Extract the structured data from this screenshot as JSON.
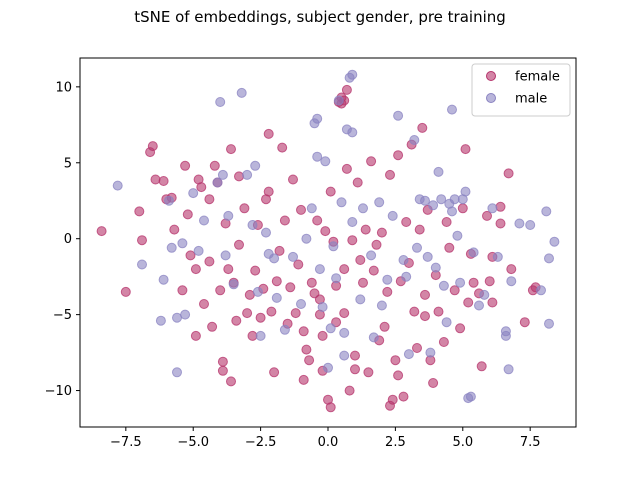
{
  "chart_data": {
    "type": "scatter",
    "title": "tSNE of embeddings, subject gender, pre training",
    "xlabel": "",
    "ylabel": "",
    "xlim": [
      -9.2,
      9.2
    ],
    "ylim": [
      -12.4,
      11.9
    ],
    "xticks": [
      -7.5,
      -5.0,
      -2.5,
      0.0,
      2.5,
      5.0,
      7.5
    ],
    "xtick_labels": [
      "−7.5",
      "−5.0",
      "−2.5",
      "0.0",
      "2.5",
      "5.0",
      "7.5"
    ],
    "yticks": [
      -10,
      -5,
      0,
      5,
      10
    ],
    "ytick_labels": [
      "−10",
      "−5",
      "0",
      "5",
      "10"
    ],
    "grid": false,
    "legend_position": "top-right",
    "series": [
      {
        "name": "female",
        "color": "#b5336b",
        "points": [
          [
            -8.4,
            0.5
          ],
          [
            -7.5,
            -3.5
          ],
          [
            -7.0,
            1.8
          ],
          [
            -6.9,
            -0.1
          ],
          [
            -6.6,
            5.7
          ],
          [
            -6.5,
            6.1
          ],
          [
            -6.4,
            3.9
          ],
          [
            -6.1,
            3.8
          ],
          [
            -6.0,
            2.6
          ],
          [
            -5.8,
            2.7
          ],
          [
            -5.7,
            0.6
          ],
          [
            -5.4,
            -3.4
          ],
          [
            -5.3,
            4.8
          ],
          [
            -5.2,
            1.6
          ],
          [
            -5.1,
            -1.1
          ],
          [
            -4.9,
            -2.0
          ],
          [
            -4.9,
            -6.4
          ],
          [
            -4.8,
            3.9
          ],
          [
            -4.7,
            3.4
          ],
          [
            -4.6,
            -4.3
          ],
          [
            -4.4,
            -1.5
          ],
          [
            -4.4,
            2.6
          ],
          [
            -4.3,
            -5.8
          ],
          [
            -4.2,
            4.8
          ],
          [
            -4.1,
            3.7
          ],
          [
            -4.0,
            -3.4
          ],
          [
            -3.9,
            -8.1
          ],
          [
            -3.9,
            -8.7
          ],
          [
            -3.8,
            1.0
          ],
          [
            -3.7,
            -2.0
          ],
          [
            -3.6,
            -9.4
          ],
          [
            -3.6,
            5.9
          ],
          [
            -3.5,
            -2.9
          ],
          [
            -3.4,
            -5.4
          ],
          [
            -3.3,
            -0.4
          ],
          [
            -3.3,
            4.1
          ],
          [
            -3.1,
            2.0
          ],
          [
            -3.0,
            -4.9
          ],
          [
            -2.9,
            -3.7
          ],
          [
            -2.8,
            -6.4
          ],
          [
            -2.7,
            -2.1
          ],
          [
            -2.6,
            0.9
          ],
          [
            -2.5,
            -5.2
          ],
          [
            -2.4,
            -3.3
          ],
          [
            -2.3,
            2.6
          ],
          [
            -2.2,
            3.1
          ],
          [
            -2.2,
            6.9
          ],
          [
            -2.1,
            -4.8
          ],
          [
            -2.0,
            -8.8
          ],
          [
            -1.9,
            -2.8
          ],
          [
            -1.8,
            -0.8
          ],
          [
            -1.7,
            6.0
          ],
          [
            -1.6,
            1.2
          ],
          [
            -1.5,
            -5.6
          ],
          [
            -1.4,
            -3.2
          ],
          [
            -1.3,
            3.9
          ],
          [
            -1.2,
            -4.9
          ],
          [
            -1.1,
            -1.7
          ],
          [
            -1.0,
            1.9
          ],
          [
            -0.9,
            -6.1
          ],
          [
            -0.9,
            -9.3
          ],
          [
            -0.8,
            -7.3
          ],
          [
            -0.7,
            -8.0
          ],
          [
            -0.6,
            -2.9
          ],
          [
            -0.5,
            -3.6
          ],
          [
            -0.4,
            1.2
          ],
          [
            -0.3,
            -5.0
          ],
          [
            -0.3,
            -4.0
          ],
          [
            -0.2,
            -6.4
          ],
          [
            -0.2,
            -8.7
          ],
          [
            -0.1,
            0.5
          ],
          [
            0.0,
            -10.6
          ],
          [
            0.1,
            -11.1
          ],
          [
            0.1,
            3.1
          ],
          [
            0.2,
            -0.2
          ],
          [
            0.3,
            -3.1
          ],
          [
            0.3,
            -5.5
          ],
          [
            0.4,
            9.0
          ],
          [
            0.5,
            8.9
          ],
          [
            0.5,
            9.3
          ],
          [
            0.6,
            9.1
          ],
          [
            0.6,
            -2.0
          ],
          [
            0.6,
            -4.9
          ],
          [
            0.7,
            9.8
          ],
          [
            0.7,
            4.6
          ],
          [
            0.8,
            -10.0
          ],
          [
            0.9,
            -0.1
          ],
          [
            1.0,
            -7.7
          ],
          [
            1.0,
            -8.6
          ],
          [
            1.1,
            3.7
          ],
          [
            1.2,
            -1.4
          ],
          [
            1.3,
            -2.9
          ],
          [
            1.4,
            0.6
          ],
          [
            1.5,
            -8.8
          ],
          [
            1.6,
            5.1
          ],
          [
            1.7,
            -2.1
          ],
          [
            1.8,
            -0.4
          ],
          [
            1.9,
            -6.7
          ],
          [
            2.0,
            0.4
          ],
          [
            2.1,
            -5.8
          ],
          [
            2.2,
            -3.5
          ],
          [
            2.3,
            4.2
          ],
          [
            2.3,
            -11.0
          ],
          [
            2.4,
            -10.6
          ],
          [
            2.5,
            -8.0
          ],
          [
            2.6,
            -9.0
          ],
          [
            2.6,
            5.5
          ],
          [
            2.7,
            -2.8
          ],
          [
            2.8,
            -10.4
          ],
          [
            2.9,
            1.1
          ],
          [
            3.0,
            -1.6
          ],
          [
            3.1,
            6.2
          ],
          [
            3.2,
            -4.8
          ],
          [
            3.3,
            -7.2
          ],
          [
            3.4,
            0.6
          ],
          [
            3.5,
            7.3
          ],
          [
            3.6,
            -3.7
          ],
          [
            3.6,
            -5.1
          ],
          [
            3.7,
            1.9
          ],
          [
            3.8,
            -8.0
          ],
          [
            3.9,
            -9.5
          ],
          [
            4.0,
            -2.4
          ],
          [
            4.1,
            -4.8
          ],
          [
            4.3,
            -6.8
          ],
          [
            4.4,
            1.1
          ],
          [
            4.5,
            -0.6
          ],
          [
            4.7,
            -3.4
          ],
          [
            4.9,
            -5.9
          ],
          [
            5.0,
            2.0
          ],
          [
            5.1,
            5.9
          ],
          [
            5.2,
            -4.2
          ],
          [
            5.3,
            -1.0
          ],
          [
            5.4,
            -2.9
          ],
          [
            5.6,
            -3.6
          ],
          [
            5.7,
            -8.4
          ],
          [
            5.9,
            1.5
          ],
          [
            6.0,
            -2.8
          ],
          [
            6.1,
            -1.2
          ],
          [
            6.1,
            -4.2
          ],
          [
            6.4,
            2.1
          ],
          [
            6.4,
            1.0
          ],
          [
            6.7,
            4.3
          ],
          [
            6.8,
            -2.0
          ],
          [
            7.3,
            -5.5
          ],
          [
            7.6,
            -3.4
          ],
          [
            7.7,
            -3.2
          ]
        ]
      },
      {
        "name": "male",
        "color": "#8a83c1",
        "points": [
          [
            -7.8,
            3.5
          ],
          [
            -6.9,
            -1.7
          ],
          [
            -6.2,
            -5.4
          ],
          [
            -6.1,
            -2.7
          ],
          [
            -5.9,
            2.5
          ],
          [
            -5.8,
            -0.6
          ],
          [
            -5.6,
            -8.8
          ],
          [
            -5.6,
            -5.2
          ],
          [
            -5.4,
            -0.3
          ],
          [
            -5.3,
            -5.0
          ],
          [
            -5.0,
            3.0
          ],
          [
            -4.8,
            -0.8
          ],
          [
            -4.6,
            1.2
          ],
          [
            -4.1,
            3.7
          ],
          [
            -4.0,
            9.0
          ],
          [
            -3.9,
            4.2
          ],
          [
            -3.8,
            -1.1
          ],
          [
            -3.7,
            1.5
          ],
          [
            -3.5,
            -3.0
          ],
          [
            -3.2,
            9.6
          ],
          [
            -3.0,
            4.2
          ],
          [
            -2.8,
            0.9
          ],
          [
            -2.7,
            4.8
          ],
          [
            -2.6,
            -3.5
          ],
          [
            -2.5,
            -6.4
          ],
          [
            -2.3,
            0.4
          ],
          [
            -2.2,
            -1.0
          ],
          [
            -2.0,
            -1.3
          ],
          [
            -1.9,
            -3.9
          ],
          [
            -1.6,
            -6.0
          ],
          [
            -1.3,
            -1.2
          ],
          [
            -1.0,
            -4.3
          ],
          [
            -0.8,
            0.0
          ],
          [
            -0.6,
            2.0
          ],
          [
            -0.5,
            7.6
          ],
          [
            -0.4,
            7.9
          ],
          [
            -0.4,
            5.4
          ],
          [
            -0.3,
            -2.0
          ],
          [
            -0.2,
            -4.5
          ],
          [
            -0.1,
            5.1
          ],
          [
            0.0,
            -8.5
          ],
          [
            0.1,
            -5.9
          ],
          [
            0.2,
            -0.5
          ],
          [
            0.3,
            -2.6
          ],
          [
            0.4,
            9.1
          ],
          [
            0.5,
            2.4
          ],
          [
            0.6,
            -7.7
          ],
          [
            0.6,
            -6.2
          ],
          [
            0.7,
            7.2
          ],
          [
            0.8,
            10.6
          ],
          [
            0.9,
            1.1
          ],
          [
            0.9,
            7.0
          ],
          [
            0.9,
            10.8
          ],
          [
            1.2,
            -4.0
          ],
          [
            1.3,
            2.0
          ],
          [
            1.6,
            -1.1
          ],
          [
            1.7,
            -6.5
          ],
          [
            1.9,
            2.4
          ],
          [
            2.0,
            -4.4
          ],
          [
            2.2,
            -2.7
          ],
          [
            2.4,
            1.5
          ],
          [
            2.6,
            8.1
          ],
          [
            2.8,
            -1.4
          ],
          [
            2.9,
            -2.5
          ],
          [
            3.0,
            -7.6
          ],
          [
            3.2,
            6.5
          ],
          [
            3.3,
            -0.6
          ],
          [
            3.4,
            2.6
          ],
          [
            3.6,
            2.5
          ],
          [
            3.7,
            -1.2
          ],
          [
            3.8,
            -7.5
          ],
          [
            3.9,
            2.2
          ],
          [
            4.0,
            -1.9
          ],
          [
            4.1,
            4.4
          ],
          [
            4.2,
            2.6
          ],
          [
            4.3,
            -3.1
          ],
          [
            4.4,
            -5.5
          ],
          [
            4.5,
            2.3
          ],
          [
            4.6,
            1.8
          ],
          [
            4.7,
            2.6
          ],
          [
            4.8,
            0.2
          ],
          [
            4.9,
            -2.9
          ],
          [
            5.0,
            2.6
          ],
          [
            5.1,
            3.1
          ],
          [
            5.2,
            -10.5
          ],
          [
            5.3,
            -10.4
          ],
          [
            5.4,
            -0.9
          ],
          [
            5.6,
            -4.4
          ],
          [
            5.8,
            -3.7
          ],
          [
            6.1,
            2.0
          ],
          [
            6.3,
            -1.2
          ],
          [
            6.6,
            -6.4
          ],
          [
            6.6,
            -6.1
          ],
          [
            6.7,
            -8.6
          ],
          [
            6.8,
            -2.8
          ],
          [
            7.1,
            1.0
          ],
          [
            7.5,
            0.9
          ],
          [
            7.9,
            -3.4
          ],
          [
            8.1,
            1.8
          ],
          [
            8.2,
            -1.3
          ],
          [
            8.2,
            -5.6
          ],
          [
            8.4,
            -0.2
          ],
          [
            4.6,
            8.5
          ]
        ]
      }
    ]
  }
}
